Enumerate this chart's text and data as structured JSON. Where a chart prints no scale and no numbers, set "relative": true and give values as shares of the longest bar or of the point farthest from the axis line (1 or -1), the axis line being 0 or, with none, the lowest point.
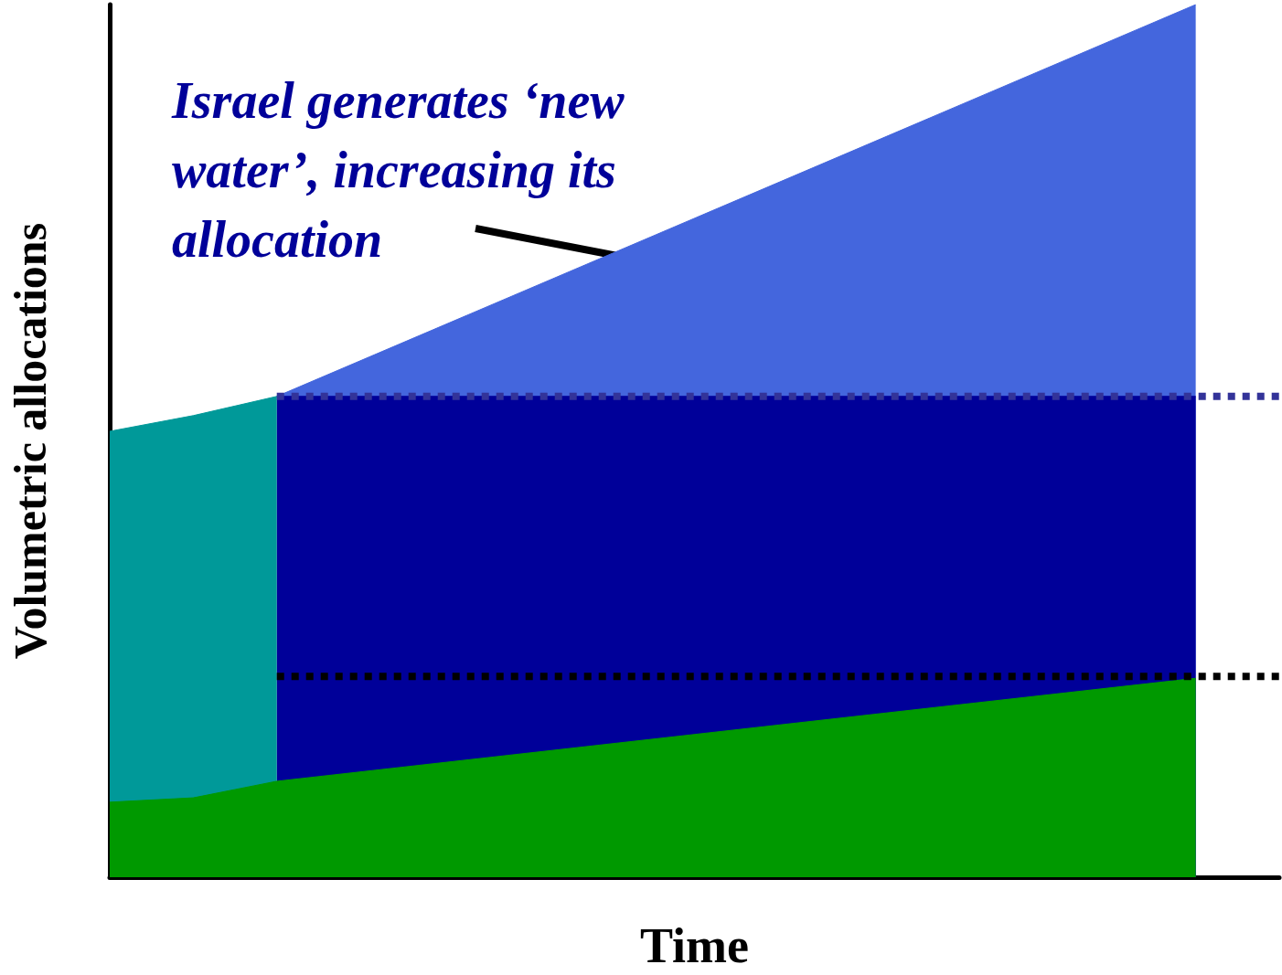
{
  "chart_data": {
    "type": "area",
    "relative": true,
    "xlabel": "Time",
    "ylabel": "Volumetric allocations",
    "categories": [
      null,
      null,
      null,
      null,
      null,
      null,
      null,
      null,
      null,
      null,
      null,
      null,
      null,
      null,
      null
    ],
    "series": [
      {
        "color": "#4466dd",
        "values": [
          null,
          null,
          0.551,
          null,
          null,
          null,
          null,
          null,
          null,
          null,
          null,
          null,
          null,
          1,
          null
        ]
      },
      {
        "color": "#000099",
        "values": [
          null,
          null,
          0.551,
          null,
          null,
          null,
          null,
          null,
          null,
          null,
          null,
          null,
          null,
          0.551,
          null
        ]
      },
      {
        "color": "#009999",
        "values": [
          0.511,
          0.529,
          0.551,
          null,
          null,
          null,
          null,
          null,
          null,
          null,
          null,
          null,
          null,
          null,
          null
        ]
      },
      {
        "color": "#009900",
        "values": [
          0.086,
          0.091,
          0.11,
          null,
          null,
          null,
          null,
          null,
          null,
          null,
          null,
          null,
          null,
          0.228,
          null
        ]
      },
      {
        "type": "line",
        "line_style": "dotted",
        "color": "#333399",
        "values": [
          null,
          null,
          0.551,
          0.551,
          0.551,
          0.551,
          0.551,
          0.551,
          0.551,
          0.551,
          0.551,
          0.551,
          0.551,
          0.551,
          0.551
        ]
      },
      {
        "type": "line",
        "line_style": "dotted",
        "color": "#000000",
        "values": [
          null,
          null,
          0.23,
          0.23,
          0.23,
          0.23,
          0.23,
          0.23,
          0.23,
          0.23,
          0.23,
          0.23,
          0.23,
          0.23,
          0.23
        ]
      }
    ],
    "annotations": [
      "Israel generates ‘new water’, increasing its allocation"
    ]
  }
}
